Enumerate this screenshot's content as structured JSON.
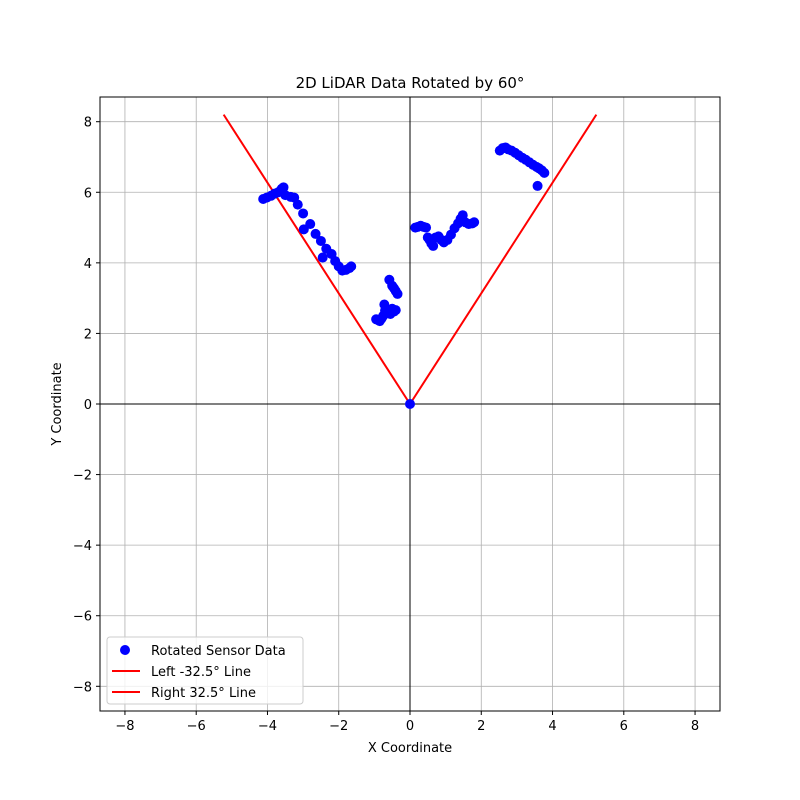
{
  "chart_data": {
    "type": "scatter",
    "title": "2D LiDAR Data Rotated by 60°",
    "xlabel": "X Coordinate",
    "ylabel": "Y Coordinate",
    "xlim": [
      -8.7,
      8.7
    ],
    "ylim": [
      -8.7,
      8.7
    ],
    "xticks": [
      -8,
      -6,
      -4,
      -2,
      0,
      2,
      4,
      6,
      8
    ],
    "yticks": [
      -8,
      -6,
      -4,
      -2,
      0,
      2,
      4,
      6,
      8
    ],
    "xtick_labels": [
      "−8",
      "−6",
      "−4",
      "−2",
      "0",
      "2",
      "4",
      "6",
      "8"
    ],
    "ytick_labels": [
      "−8",
      "−6",
      "−4",
      "−2",
      "0",
      "2",
      "4",
      "6",
      "8"
    ],
    "grid": true,
    "legend_position": "lower-left",
    "series": [
      {
        "name": "Rotated Sensor Data",
        "kind": "scatter",
        "color": "#0000ff",
        "points": [
          [
            -4.12,
            5.81
          ],
          [
            -4.02,
            5.85
          ],
          [
            -3.9,
            5.9
          ],
          [
            -3.8,
            5.96
          ],
          [
            -3.7,
            6.0
          ],
          [
            -3.6,
            6.1
          ],
          [
            -3.55,
            6.14
          ],
          [
            -3.5,
            5.92
          ],
          [
            -3.35,
            5.87
          ],
          [
            -3.25,
            5.85
          ],
          [
            -3.15,
            5.65
          ],
          [
            -3.0,
            5.4
          ],
          [
            -2.98,
            4.95
          ],
          [
            -2.8,
            5.1
          ],
          [
            -2.65,
            4.82
          ],
          [
            -2.5,
            4.62
          ],
          [
            -2.45,
            4.15
          ],
          [
            -2.35,
            4.4
          ],
          [
            -2.2,
            4.25
          ],
          [
            -2.1,
            4.05
          ],
          [
            -2.0,
            3.9
          ],
          [
            -1.9,
            3.78
          ],
          [
            -1.8,
            3.8
          ],
          [
            -1.7,
            3.85
          ],
          [
            -1.65,
            3.9
          ],
          [
            -0.58,
            3.52
          ],
          [
            -0.5,
            3.35
          ],
          [
            -0.45,
            3.28
          ],
          [
            -0.4,
            3.2
          ],
          [
            -0.35,
            3.12
          ],
          [
            -0.95,
            2.4
          ],
          [
            -0.9,
            2.38
          ],
          [
            -0.85,
            2.35
          ],
          [
            -0.8,
            2.42
          ],
          [
            -0.75,
            2.5
          ],
          [
            -0.72,
            2.82
          ],
          [
            -0.7,
            2.65
          ],
          [
            -0.65,
            2.58
          ],
          [
            -0.6,
            2.6
          ],
          [
            -0.55,
            2.55
          ],
          [
            -0.5,
            2.7
          ],
          [
            -0.45,
            2.62
          ],
          [
            -0.4,
            2.66
          ],
          [
            0.0,
            0.0
          ],
          [
            0.15,
            5.0
          ],
          [
            0.22,
            5.02
          ],
          [
            0.3,
            5.05
          ],
          [
            0.38,
            5.02
          ],
          [
            0.45,
            5.0
          ],
          [
            0.5,
            4.72
          ],
          [
            0.55,
            4.65
          ],
          [
            0.6,
            4.55
          ],
          [
            0.65,
            4.48
          ],
          [
            0.72,
            4.72
          ],
          [
            0.8,
            4.75
          ],
          [
            0.88,
            4.65
          ],
          [
            0.95,
            4.58
          ],
          [
            1.05,
            4.65
          ],
          [
            1.15,
            4.8
          ],
          [
            1.25,
            4.98
          ],
          [
            1.35,
            5.12
          ],
          [
            1.42,
            5.25
          ],
          [
            1.48,
            5.35
          ],
          [
            1.55,
            5.15
          ],
          [
            1.65,
            5.1
          ],
          [
            1.75,
            5.12
          ],
          [
            1.8,
            5.15
          ],
          [
            2.52,
            7.18
          ],
          [
            2.6,
            7.25
          ],
          [
            2.68,
            7.27
          ],
          [
            2.75,
            7.22
          ],
          [
            2.85,
            7.18
          ],
          [
            2.95,
            7.12
          ],
          [
            3.05,
            7.05
          ],
          [
            3.15,
            6.98
          ],
          [
            3.25,
            6.92
          ],
          [
            3.35,
            6.85
          ],
          [
            3.45,
            6.78
          ],
          [
            3.55,
            6.72
          ],
          [
            3.62,
            6.68
          ],
          [
            3.7,
            6.62
          ],
          [
            3.77,
            6.55
          ],
          [
            3.58,
            6.18
          ]
        ]
      },
      {
        "name": "Left -32.5° Line",
        "kind": "line",
        "color": "#ff0000",
        "points": [
          [
            0,
            0
          ],
          [
            -5.23,
            8.2
          ]
        ]
      },
      {
        "name": "Right 32.5° Line",
        "kind": "line",
        "color": "#ff0000",
        "points": [
          [
            0,
            0
          ],
          [
            5.23,
            8.2
          ]
        ]
      }
    ]
  }
}
